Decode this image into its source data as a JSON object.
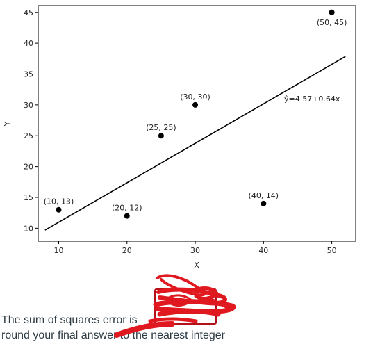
{
  "chart_data": {
    "type": "scatter",
    "title": "",
    "xlabel": "X",
    "ylabel": "Y",
    "xlim": [
      7,
      53.5
    ],
    "ylim": [
      7.9,
      46.1
    ],
    "xticks": [
      10,
      20,
      30,
      40,
      50
    ],
    "yticks": [
      10,
      15,
      20,
      25,
      30,
      35,
      40,
      45
    ],
    "grid": false,
    "points": [
      {
        "x": 10,
        "y": 13,
        "label": "(10, 13)"
      },
      {
        "x": 20,
        "y": 12,
        "label": "(20, 12)"
      },
      {
        "x": 25,
        "y": 25,
        "label": "(25, 25)"
      },
      {
        "x": 30,
        "y": 30,
        "label": "(30, 30)"
      },
      {
        "x": 40,
        "y": 14,
        "label": "(40, 14)"
      },
      {
        "x": 50,
        "y": 45,
        "label": "(50, 45)"
      }
    ],
    "regression": {
      "intercept": 4.57,
      "slope": 0.64,
      "x_range": [
        8,
        52
      ],
      "label": "ŷ=4.57+0.64x"
    }
  },
  "question": {
    "line1": "The sum of squares error is",
    "line2": "round your final answer to the nearest integer"
  },
  "answer_input": {
    "value": ""
  },
  "colors": {
    "point": "#000000",
    "line": "#000000",
    "scribble": "#e0181f",
    "box_border": "#b3121a"
  }
}
